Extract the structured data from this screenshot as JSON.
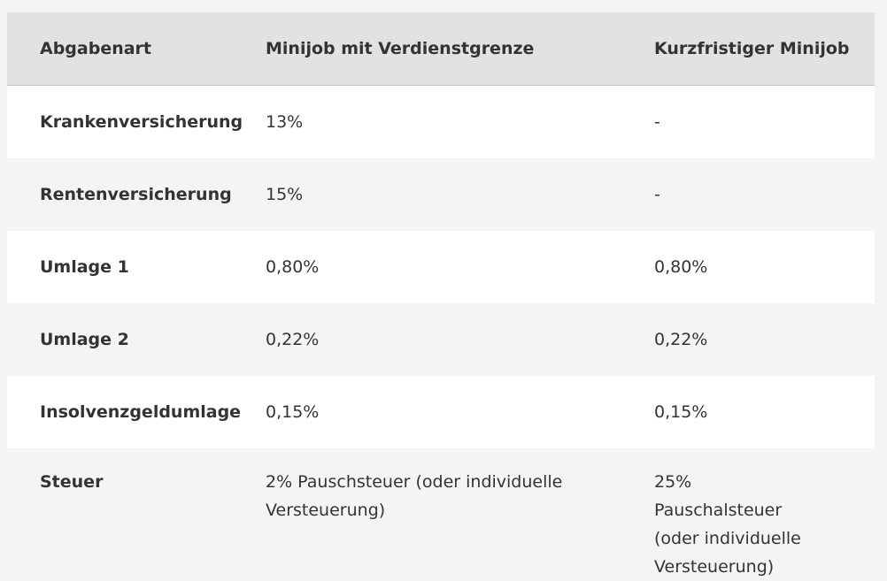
{
  "table": {
    "header": [
      "Abgabenart",
      "Minijob mit Verdienstgrenze",
      "Kurzfristiger Minijob"
    ],
    "rows": [
      [
        "Krankenversicherung",
        "13%",
        "-"
      ],
      [
        "Rentenversicherung",
        "15%",
        "-"
      ],
      [
        "Umlage 1",
        "0,80%",
        "0,80%"
      ],
      [
        "Umlage 2",
        "0,22%",
        "0,22%"
      ],
      [
        "Insolvenzgeldumlage",
        "0,15%",
        "0,15%"
      ],
      [
        "Steuer",
        "2% Pauschsteuer (oder individuelle Versteuerung)",
        "25% Pauschalsteuer (oder individuelle Versteuerung)"
      ]
    ]
  }
}
